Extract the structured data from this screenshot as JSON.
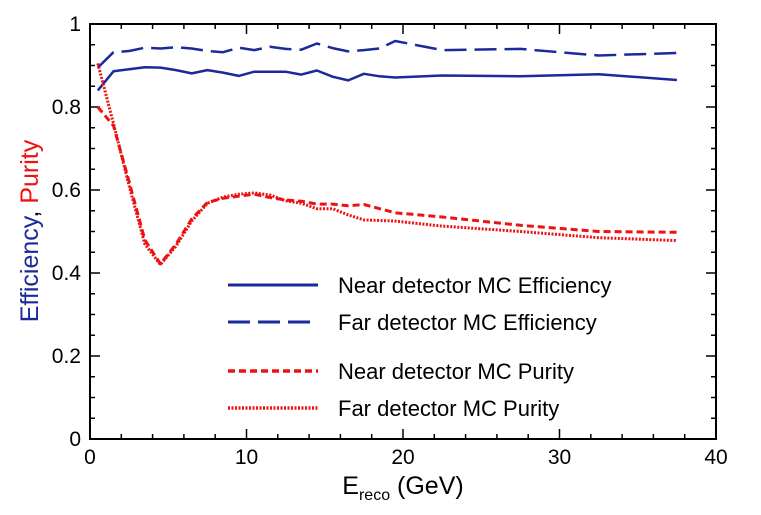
{
  "chart_data": {
    "type": "line",
    "xlabel_main": "E",
    "xlabel_sub": "reco",
    "xlabel_unit": " (GeV)",
    "ylabel_efficiency": "Efficiency",
    "ylabel_sep": ", ",
    "ylabel_purity": "Purity",
    "efficiency_color": "#1a2a9a",
    "purity_color": "#ee1111",
    "xlim": [
      0,
      40
    ],
    "ylim": [
      0,
      1
    ],
    "xticks": [
      0,
      10,
      20,
      30,
      40
    ],
    "yticks": [
      0,
      0.2,
      0.4,
      0.6,
      0.8,
      1
    ],
    "xtick_labels": [
      "0",
      "10",
      "20",
      "30",
      "40"
    ],
    "ytick_labels": [
      "0",
      "0.2",
      "0.4",
      "0.6",
      "0.8",
      "1"
    ],
    "legend_position": "lower-right",
    "series": [
      {
        "name": "Near detector MC Efficiency",
        "color": "#1a2a9a",
        "dash": "solid",
        "x": [
          0.5,
          1.5,
          2.5,
          3.5,
          4.5,
          5.5,
          6.5,
          7.5,
          8.5,
          9.5,
          10.5,
          11.5,
          12.5,
          13.5,
          14.5,
          15.5,
          16.5,
          17.5,
          18.5,
          19.5,
          22.5,
          27.5,
          32.5,
          37.5
        ],
        "y": [
          0.84,
          0.886,
          0.891,
          0.896,
          0.895,
          0.889,
          0.881,
          0.889,
          0.883,
          0.875,
          0.885,
          0.885,
          0.885,
          0.878,
          0.888,
          0.873,
          0.864,
          0.88,
          0.874,
          0.871,
          0.876,
          0.874,
          0.879,
          0.865
        ]
      },
      {
        "name": "Far detector MC Efficiency",
        "color": "#1a2a9a",
        "dash": "long-dash",
        "x": [
          0.5,
          1.5,
          2.5,
          3.5,
          4.5,
          5.5,
          6.5,
          7.5,
          8.5,
          9.5,
          10.5,
          11.5,
          12.5,
          13.5,
          14.5,
          15.5,
          16.5,
          17.5,
          18.5,
          19.5,
          22.5,
          27.5,
          32.5,
          37.5
        ],
        "y": [
          0.895,
          0.932,
          0.935,
          0.943,
          0.941,
          0.944,
          0.941,
          0.935,
          0.932,
          0.943,
          0.937,
          0.945,
          0.94,
          0.938,
          0.953,
          0.942,
          0.934,
          0.937,
          0.941,
          0.959,
          0.937,
          0.94,
          0.924,
          0.93
        ]
      },
      {
        "name": "Near detector MC Purity",
        "color": "#ee1111",
        "dash": "short-dash",
        "x": [
          0.5,
          1.5,
          2.5,
          3.5,
          4.5,
          5.5,
          6.5,
          7.5,
          8.5,
          9.5,
          10.5,
          11.5,
          12.5,
          13.5,
          14.5,
          15.5,
          16.5,
          17.5,
          19.5,
          22.5,
          27.5,
          32.5,
          37.5
        ],
        "y": [
          0.8,
          0.755,
          0.62,
          0.48,
          0.422,
          0.47,
          0.53,
          0.57,
          0.58,
          0.585,
          0.59,
          0.582,
          0.576,
          0.573,
          0.566,
          0.566,
          0.562,
          0.565,
          0.545,
          0.535,
          0.515,
          0.5,
          0.498
        ]
      },
      {
        "name": "Far detector MC Purity",
        "color": "#ee1111",
        "dash": "dotted",
        "x": [
          0.5,
          1.5,
          2.5,
          3.5,
          4.5,
          5.5,
          6.5,
          7.5,
          8.5,
          9.5,
          10.5,
          11.5,
          12.5,
          13.5,
          14.5,
          15.5,
          16.5,
          17.5,
          19.5,
          22.5,
          27.5,
          32.5,
          37.5
        ],
        "y": [
          0.905,
          0.76,
          0.61,
          0.47,
          0.42,
          0.465,
          0.525,
          0.568,
          0.583,
          0.59,
          0.593,
          0.588,
          0.574,
          0.568,
          0.555,
          0.555,
          0.54,
          0.528,
          0.525,
          0.513,
          0.5,
          0.485,
          0.478
        ]
      }
    ]
  }
}
